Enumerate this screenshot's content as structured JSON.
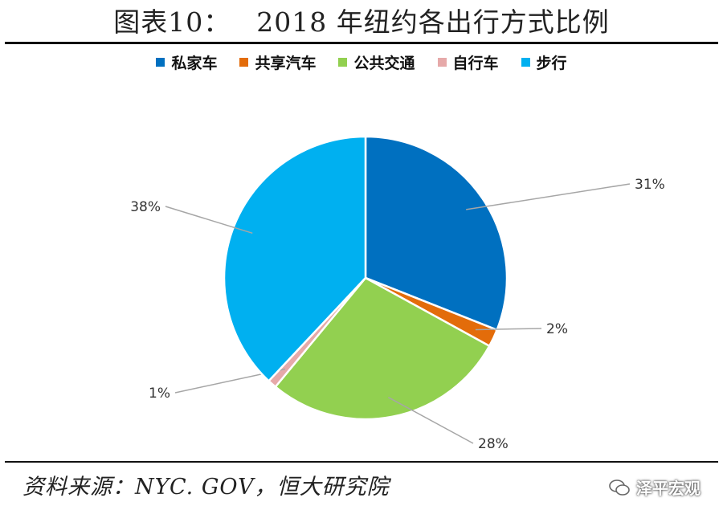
{
  "header": {
    "title_prefix": "图表10：",
    "title_main": "2018 年纽约各出行方式比例"
  },
  "footer": {
    "source": "资料来源：NYC. GOV，恒大研究院",
    "watermark": "泽平宏观"
  },
  "chart_data": {
    "type": "pie",
    "title": "2018 年纽约各出行方式比例",
    "legend_position": "top",
    "slices": [
      {
        "name": "私家车",
        "value": 31,
        "label": "31%",
        "color": "#0070c0"
      },
      {
        "name": "共享汽车",
        "value": 2,
        "label": "2%",
        "color": "#e36c0a"
      },
      {
        "name": "公共交通",
        "value": 28,
        "label": "28%",
        "color": "#92d050"
      },
      {
        "name": "自行车",
        "value": 1,
        "label": "1%",
        "color": "#e6a9a9"
      },
      {
        "name": "步行",
        "value": 38,
        "label": "38%",
        "color": "#00b0f0"
      }
    ]
  }
}
